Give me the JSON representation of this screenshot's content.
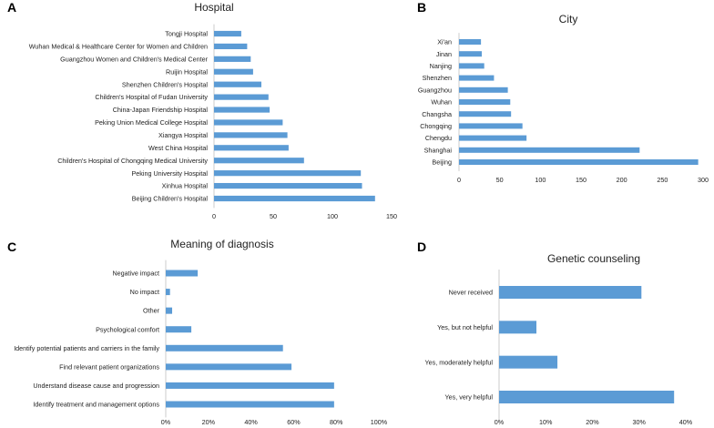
{
  "chart_data": [
    {
      "panel": "A",
      "type": "bar",
      "orientation": "horizontal",
      "title": "Hospital",
      "categories": [
        "Tongji Hospital",
        "Wuhan Medical & Healthcare Center for Women and Children",
        "Guangzhou Women and Children's Medical Center",
        "Ruijin Hospital",
        "Shenzhen Children's Hospital",
        "Children's Hospital of Fudan University",
        "China-Japan Friendship Hospital",
        "Peking Union Medical College Hospital",
        "Xiangya Hospital",
        "West China Hospital",
        "Children's Hospital of Chongqing Medical University",
        "Peking University Hospital",
        "Xinhua Hospital",
        "Beijing Children's Hospital"
      ],
      "values": [
        23,
        28,
        31,
        33,
        40,
        46,
        47,
        58,
        62,
        63,
        76,
        124,
        125,
        136
      ],
      "xlim": [
        0,
        150
      ],
      "xticks": [
        0,
        50,
        100,
        150
      ],
      "xtick_labels": [
        "0",
        "50",
        "100",
        "150"
      ]
    },
    {
      "panel": "B",
      "type": "bar",
      "orientation": "horizontal",
      "title": "City",
      "categories": [
        "Xi'an",
        "Jinan",
        "Nanjing",
        "Shenzhen",
        "Guangzhou",
        "Wuhan",
        "Changsha",
        "Chongqing",
        "Chengdu",
        "Shanghai",
        "Beijing"
      ],
      "values": [
        27,
        28,
        31,
        43,
        60,
        63,
        64,
        78,
        83,
        222,
        294
      ],
      "xlim": [
        0,
        300
      ],
      "xticks": [
        0,
        50,
        100,
        150,
        200,
        250,
        300
      ],
      "xtick_labels": [
        "0",
        "50",
        "100",
        "150",
        "200",
        "250",
        "300"
      ]
    },
    {
      "panel": "C",
      "type": "bar",
      "orientation": "horizontal",
      "title": "Meaning of diagnosis",
      "categories": [
        "Negative impact",
        "No impact",
        "Other",
        "Psychological comfort",
        "Identify potential patients and carriers in the family",
        "Find relevant patient organizations",
        "Understand disease cause and progression",
        "Identify treatment and management options"
      ],
      "values": [
        15,
        2,
        3,
        12,
        55,
        59,
        79,
        79
      ],
      "unit": "%",
      "xlim": [
        0,
        100
      ],
      "xticks": [
        0,
        20,
        40,
        60,
        80,
        100
      ],
      "xtick_labels": [
        "0%",
        "20%",
        "40%",
        "60%",
        "80%",
        "100%"
      ]
    },
    {
      "panel": "D",
      "type": "bar",
      "orientation": "horizontal",
      "title": "Genetic counseling",
      "categories": [
        "Never received",
        "Yes, but not helpful",
        "Yes, moderately helpful",
        "Yes, very helpful"
      ],
      "values": [
        30.5,
        8,
        12.5,
        37.5
      ],
      "unit": "%",
      "xlim": [
        0,
        40
      ],
      "xticks": [
        0,
        10,
        20,
        30,
        40
      ],
      "xtick_labels": [
        "0%",
        "10%",
        "20%",
        "30%",
        "40%"
      ]
    }
  ],
  "colors": {
    "bar": "#5b9bd5",
    "axis": "#bfbfbf"
  }
}
